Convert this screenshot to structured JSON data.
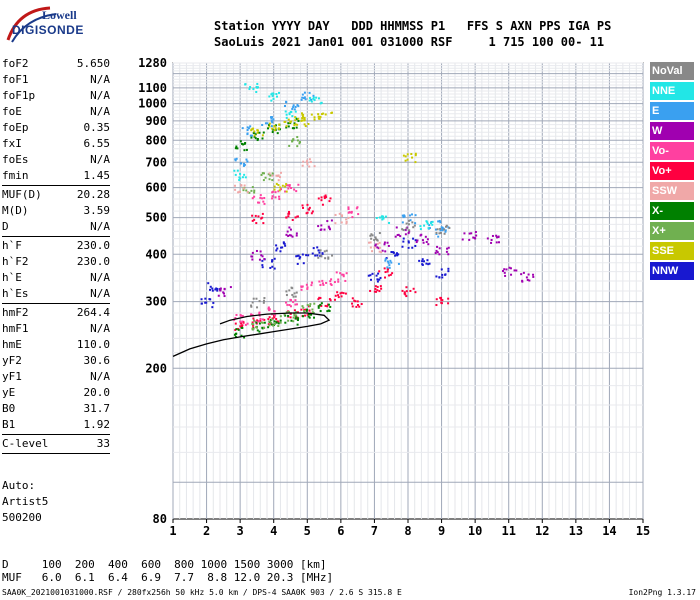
{
  "logo": {
    "line1": "Lowell",
    "line2": "DIGISONDE"
  },
  "header": {
    "line1": "Station YYYY DAY   DDD HHMMSS P1   FFS S AXN PPS IGA PS",
    "line2": "SaoLuis 2021 Jan01 001 031000 RSF     1 715 100 00- 11"
  },
  "params": [
    {
      "label": "foF2",
      "value": "5.650"
    },
    {
      "label": "foF1",
      "value": "N/A"
    },
    {
      "label": "foF1p",
      "value": "N/A"
    },
    {
      "label": "foE",
      "value": "N/A"
    },
    {
      "label": "foEp",
      "value": "0.35"
    },
    {
      "label": "fxI",
      "value": "6.55"
    },
    {
      "label": "foEs",
      "value": "N/A"
    },
    {
      "label": "fmin",
      "value": "1.45"
    },
    {
      "label": "---"
    },
    {
      "label": "MUF(D)",
      "value": "20.28"
    },
    {
      "label": "M(D)",
      "value": "3.59"
    },
    {
      "label": "D",
      "value": "N/A"
    },
    {
      "label": "---"
    },
    {
      "label": "h`F",
      "value": "230.0"
    },
    {
      "label": "h`F2",
      "value": "230.0"
    },
    {
      "label": "h`E",
      "value": "N/A"
    },
    {
      "label": "h`Es",
      "value": "N/A"
    },
    {
      "label": "---"
    },
    {
      "label": "hmF2",
      "value": "264.4"
    },
    {
      "label": "hmF1",
      "value": "N/A"
    },
    {
      "label": "hmE",
      "value": "110.0"
    },
    {
      "label": "yF2",
      "value": "30.6"
    },
    {
      "label": "yF1",
      "value": "N/A"
    },
    {
      "label": "yE",
      "value": "20.0"
    },
    {
      "label": "B0",
      "value": "31.7"
    },
    {
      "label": "B1",
      "value": "1.92"
    },
    {
      "label": "---"
    },
    {
      "label": "C-level",
      "value": "33"
    },
    {
      "label": "---"
    }
  ],
  "auto": {
    "line1": "Auto:",
    "line2": "Artist5",
    "line3": "500200"
  },
  "legend": [
    {
      "label": "NoVal",
      "color": "#888888"
    },
    {
      "label": "NNE",
      "color": "#22e6e6"
    },
    {
      "label": "E",
      "color": "#3aa0f0"
    },
    {
      "label": "W",
      "color": "#a000b0"
    },
    {
      "label": "Vo-",
      "color": "#ff40a0"
    },
    {
      "label": "Vo+",
      "color": "#ff0040"
    },
    {
      "label": "SSW",
      "color": "#f0a8a8"
    },
    {
      "label": "X-",
      "color": "#008000"
    },
    {
      "label": "X+",
      "color": "#70b050"
    },
    {
      "label": "SSE",
      "color": "#c8c800"
    },
    {
      "label": "NNW",
      "color": "#1818d0"
    }
  ],
  "dmuf": {
    "line1": "D     100  200  400  600  800 1000 1500 3000 [km]",
    "line2": "MUF   6.0  6.1  6.4  6.9  7.7  8.8 12.0 20.3 [MHz]"
  },
  "footer": "SAA0K_2021001031000.RSF / 280fx256h 50 kHz 5.0 km / DPS-4 SAA0K 903 / 2.6 S 315.8 E",
  "footer_right": "Ion2Png 1.3.17",
  "chart_data": {
    "type": "scatter",
    "xlabel": "",
    "ylabel": "",
    "xlim": [
      1,
      15
    ],
    "ylim": [
      80,
      1280
    ],
    "x_ticks": [
      "1",
      "2",
      "3",
      "4",
      "5",
      "6",
      "7",
      "8",
      "9",
      "10",
      "11",
      "12",
      "13",
      "14",
      "15"
    ],
    "y_ticks": [
      "80",
      "200",
      "300",
      "400",
      "500",
      "600",
      "700",
      "800",
      "900",
      "1000",
      "1100",
      "1280"
    ],
    "grid": true,
    "yscale": "log",
    "trace": [
      {
        "x": 1.0,
        "y": 215
      },
      {
        "x": 1.5,
        "y": 225
      },
      {
        "x": 2.0,
        "y": 232
      },
      {
        "x": 2.5,
        "y": 238
      },
      {
        "x": 3.0,
        "y": 242
      },
      {
        "x": 3.5,
        "y": 246
      },
      {
        "x": 4.0,
        "y": 250
      },
      {
        "x": 4.5,
        "y": 254
      },
      {
        "x": 5.0,
        "y": 258
      },
      {
        "x": 5.4,
        "y": 262
      },
      {
        "x": 5.65,
        "y": 268
      },
      {
        "x": 5.5,
        "y": 276
      },
      {
        "x": 5.0,
        "y": 280
      },
      {
        "x": 4.5,
        "y": 280
      },
      {
        "x": 3.8,
        "y": 278
      },
      {
        "x": 3.2,
        "y": 274
      },
      {
        "x": 2.7,
        "y": 268
      },
      {
        "x": 2.4,
        "y": 262
      }
    ],
    "series": [
      {
        "name": "Vo+",
        "color": "#ff0040",
        "x": [
          3.0,
          3.5,
          4.0,
          4.5,
          5.0,
          5.5,
          6.0,
          6.5,
          7.0,
          7.3,
          8.0,
          9.0,
          3.5,
          4.5,
          5.0,
          5.5
        ],
        "y": [
          260,
          265,
          270,
          280,
          285,
          300,
          310,
          300,
          330,
          360,
          320,
          300,
          500,
          510,
          530,
          560
        ]
      },
      {
        "name": "Vo-",
        "color": "#ff40a0",
        "x": [
          3.0,
          3.5,
          4.0,
          4.5,
          5.0,
          5.5,
          6.0,
          6.4,
          3.5,
          4.0,
          4.5
        ],
        "y": [
          270,
          275,
          285,
          300,
          330,
          340,
          350,
          520,
          560,
          580,
          600
        ]
      },
      {
        "name": "NNW",
        "color": "#1818d0",
        "x": [
          2.0,
          2.2,
          3.8,
          4.2,
          4.8,
          5.3,
          7.0,
          7.5,
          8.0,
          8.5,
          9.0
        ],
        "y": [
          300,
          330,
          380,
          420,
          390,
          410,
          350,
          400,
          430,
          380,
          360
        ]
      },
      {
        "name": "W",
        "color": "#a000b0",
        "x": [
          2.5,
          3.5,
          4.5,
          5.5,
          7.2,
          7.8,
          8.4,
          9.0,
          9.8,
          10.5,
          11.0,
          11.5
        ],
        "y": [
          320,
          400,
          460,
          480,
          420,
          460,
          440,
          410,
          450,
          440,
          360,
          350
        ]
      },
      {
        "name": "E",
        "color": "#3aa0f0",
        "x": [
          3.0,
          3.2,
          3.8,
          4.5,
          5.0,
          7.5,
          8.0,
          8.8,
          9.0
        ],
        "y": [
          700,
          850,
          900,
          1000,
          1050,
          380,
          500,
          480,
          460
        ]
      },
      {
        "name": "NNE",
        "color": "#22e6e6",
        "x": [
          3.0,
          3.3,
          4.0,
          4.5,
          5.2,
          7.2,
          8.5
        ],
        "y": [
          650,
          1100,
          1050,
          950,
          1020,
          500,
          480
        ]
      },
      {
        "name": "X-",
        "color": "#008000",
        "x": [
          3.0,
          3.5,
          4.0,
          4.5,
          5.0,
          5.5,
          3.0,
          3.5,
          4.0,
          4.5
        ],
        "y": [
          250,
          258,
          262,
          270,
          280,
          290,
          780,
          820,
          860,
          890
        ]
      },
      {
        "name": "X+",
        "color": "#70b050",
        "x": [
          3.5,
          4.0,
          4.5,
          5.0,
          3.2,
          3.8,
          4.6
        ],
        "y": [
          262,
          268,
          276,
          290,
          600,
          640,
          800
        ]
      },
      {
        "name": "SSE",
        "color": "#c8c800",
        "x": [
          3.5,
          4.0,
          4.5,
          5.0,
          5.5,
          8.0,
          4.2,
          4.8
        ],
        "y": [
          840,
          880,
          900,
          920,
          940,
          720,
          600,
          900
        ]
      },
      {
        "name": "SSW",
        "color": "#f0a8a8",
        "x": [
          3.0,
          4.0,
          5.0,
          6.0,
          7.0
        ],
        "y": [
          600,
          650,
          700,
          500,
          420
        ]
      },
      {
        "name": "NoVal",
        "color": "#888888",
        "x": [
          3.5,
          4.5,
          5.5,
          7.0,
          8.0,
          9.0
        ],
        "y": [
          300,
          320,
          400,
          450,
          480,
          470
        ]
      }
    ]
  }
}
